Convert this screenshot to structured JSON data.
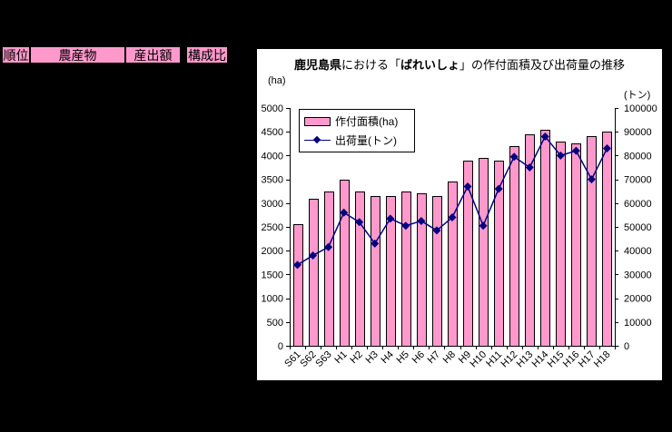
{
  "window": {
    "background_color": "#000000"
  },
  "table_header": {
    "bg_color": "#FF99CC",
    "cells": [
      {
        "label": "順位"
      },
      {
        "label": "農産物"
      },
      {
        "label": "産出額"
      },
      {
        "label": "構成比"
      }
    ]
  },
  "chart": {
    "title_segments": [
      {
        "text": "鹿児島県",
        "bold": true
      },
      {
        "text": "における「",
        "bold": false
      },
      {
        "text": "ばれいしょ",
        "bold": true
      },
      {
        "text": "」の作付面積及び出荷量の推移",
        "bold": false
      }
    ],
    "left_unit_label": "(ha)",
    "right_unit_label": "(トン)"
  },
  "chart_data": {
    "type": "bar",
    "title": "鹿児島県における「ばれいしょ」の作付面積及び出荷量の推移",
    "categories": [
      "S61",
      "S62",
      "S63",
      "H1",
      "H2",
      "H3",
      "H4",
      "H5",
      "H6",
      "H7",
      "H8",
      "H9",
      "H10",
      "H11",
      "H12",
      "H13",
      "H14",
      "H15",
      "H16",
      "H17",
      "H18"
    ],
    "series": [
      {
        "name": "作付面積(ha)",
        "type": "bar",
        "axis": "left",
        "color": "#FF99CC",
        "border_color": "#000000",
        "values": [
          2550,
          3100,
          3250,
          3500,
          3250,
          3150,
          3150,
          3250,
          3200,
          3150,
          3450,
          3900,
          3950,
          3900,
          4200,
          4450,
          4550,
          4300,
          4250,
          4400,
          4500
        ]
      },
      {
        "name": "出荷量(トン)",
        "type": "line",
        "axis": "right",
        "color": "#000080",
        "marker": "diamond",
        "values": [
          34000,
          38000,
          41500,
          56000,
          52000,
          43000,
          53500,
          50500,
          52500,
          48500,
          54000,
          67000,
          50500,
          66000,
          79500,
          75000,
          88000,
          80000,
          82000,
          70000,
          83000
        ]
      }
    ],
    "left_axis": {
      "unit": "(ha)",
      "min": 0,
      "max": 5000,
      "step": 500
    },
    "right_axis": {
      "unit": "(トン)",
      "min": 0,
      "max": 100000,
      "step": 10000
    },
    "grid": false,
    "legend_position": "top-left-inside",
    "x_label_rotation_deg": -45
  }
}
